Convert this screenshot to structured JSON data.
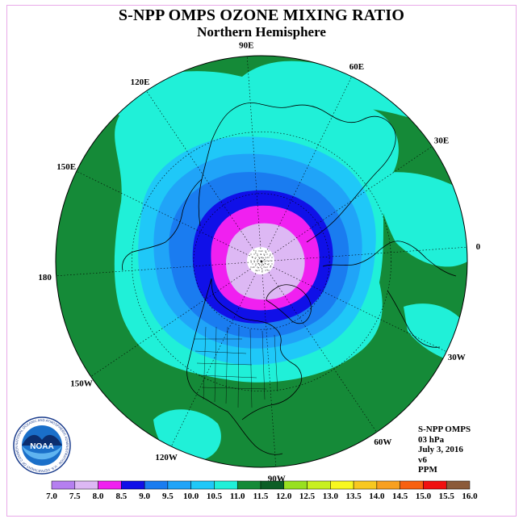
{
  "title": "S-NPP OMPS OZONE MIXING RATIO",
  "subtitle": "Northern Hemisphere",
  "longitude_labels": [
    {
      "text": "90E",
      "lon": 90
    },
    {
      "text": "60E",
      "lon": 60
    },
    {
      "text": "30E",
      "lon": 30
    },
    {
      "text": "0",
      "lon": 0
    },
    {
      "text": "30W",
      "lon": -30
    },
    {
      "text": "60W",
      "lon": -60
    },
    {
      "text": "90W",
      "lon": -90
    },
    {
      "text": "120W",
      "lon": -120
    },
    {
      "text": "150W",
      "lon": -150
    },
    {
      "text": "180",
      "lon": 180
    },
    {
      "text": "150E",
      "lon": 150
    },
    {
      "text": "120E",
      "lon": 120
    }
  ],
  "info": {
    "instrument": "S-NPP OMPS",
    "level": "03 hPa",
    "date": "July 3, 2016",
    "version": "v6",
    "units": "PPM"
  },
  "logo": {
    "text": "NOAA",
    "ring_text": "NATIONAL OCEANIC AND ATMOSPHERIC ADMINISTRATION · U.S. DEPARTMENT OF COMMERCE"
  },
  "colorbar": {
    "labels": [
      "7.0",
      "7.5",
      "8.0",
      "8.5",
      "9.0",
      "9.5",
      "10.0",
      "10.5",
      "11.0",
      "11.5",
      "12.0",
      "12.5",
      "13.0",
      "13.5",
      "14.0",
      "14.5",
      "15.0",
      "15.5",
      "16.0"
    ],
    "colors": [
      "#b57ff0",
      "#ddb8f4",
      "#f020f0",
      "#1010e8",
      "#1a7cf0",
      "#20a4f8",
      "#1fc8f8",
      "#20f0d8",
      "#158a38",
      "#0c5e26",
      "#98e020",
      "#c8f020",
      "#f8f820",
      "#f8c820",
      "#f8a020",
      "#f86010",
      "#f01010",
      "#8b5a3a"
    ]
  },
  "map_colors": {
    "band_white": "#ffffff",
    "band_lavender": "#ddb8f4",
    "band_magenta": "#f020f0",
    "band_blue": "#1010e8",
    "band_medblue": "#1a7cf0",
    "band_lightblue": "#20a4f8",
    "band_skyblue": "#1fc8f8",
    "band_cyan": "#20f0d8",
    "band_green": "#158a38",
    "coastline": "#000000"
  }
}
